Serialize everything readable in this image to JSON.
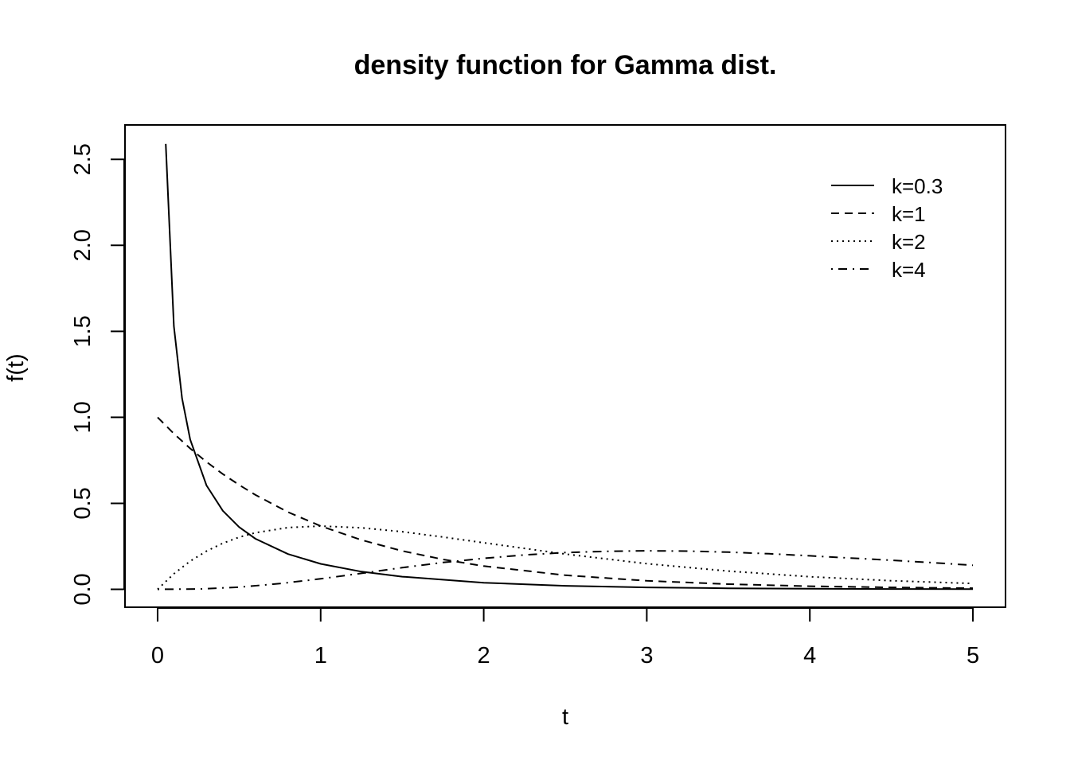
{
  "chart_data": {
    "type": "line",
    "title": "density function for Gamma dist.",
    "xlabel": "t",
    "ylabel": "f(t)",
    "xlim": [
      -0.2,
      5.2
    ],
    "ylim": [
      -0.104,
      2.7
    ],
    "xticks": [
      0,
      1,
      2,
      3,
      4,
      5
    ],
    "xtick_labels": [
      "0",
      "1",
      "2",
      "3",
      "4",
      "5"
    ],
    "yticks": [
      0.0,
      0.5,
      1.0,
      1.5,
      2.0,
      2.5
    ],
    "ytick_labels": [
      "0.0",
      "0.5",
      "1.0",
      "1.5",
      "2.0",
      "2.5"
    ],
    "grid": false,
    "legend_position": "top-right",
    "legend_border": false,
    "series": [
      {
        "name": "k=0.3",
        "line_style": "solid",
        "x": [
          0.05,
          0.1,
          0.15,
          0.2,
          0.3,
          0.4,
          0.5,
          0.6,
          0.8,
          1.0,
          1.25,
          1.5,
          2.0,
          2.5,
          3.0,
          3.5,
          4.0,
          4.5,
          5.0
        ],
        "y": [
          2.59,
          1.53,
          1.11,
          0.871,
          0.604,
          0.457,
          0.362,
          0.294,
          0.205,
          0.148,
          0.103,
          0.0736,
          0.0384,
          0.0206,
          0.0113,
          0.0063,
          0.0035,
          0.002,
          0.0011
        ]
      },
      {
        "name": "k=1",
        "line_style": "dashed",
        "x": [
          0.0,
          0.1,
          0.2,
          0.3,
          0.4,
          0.5,
          0.6,
          0.8,
          1.0,
          1.25,
          1.5,
          1.75,
          2.0,
          2.5,
          3.0,
          3.5,
          4.0,
          4.5,
          5.0
        ],
        "y": [
          1.0,
          0.905,
          0.819,
          0.741,
          0.67,
          0.607,
          0.549,
          0.449,
          0.368,
          0.287,
          0.223,
          0.174,
          0.135,
          0.0821,
          0.0498,
          0.0302,
          0.0183,
          0.0111,
          0.0067
        ]
      },
      {
        "name": "k=2",
        "line_style": "dotted",
        "x": [
          0.0,
          0.1,
          0.2,
          0.3,
          0.4,
          0.5,
          0.6,
          0.8,
          1.0,
          1.25,
          1.5,
          1.75,
          2.0,
          2.5,
          3.0,
          3.5,
          4.0,
          4.5,
          5.0
        ],
        "y": [
          0.0,
          0.0905,
          0.164,
          0.222,
          0.268,
          0.303,
          0.329,
          0.359,
          0.368,
          0.358,
          0.335,
          0.304,
          0.271,
          0.205,
          0.149,
          0.106,
          0.0733,
          0.05,
          0.0337
        ]
      },
      {
        "name": "k=4",
        "line_style": "dotdash",
        "x": [
          0.0,
          0.25,
          0.5,
          0.75,
          1.0,
          1.25,
          1.5,
          1.75,
          2.0,
          2.25,
          2.5,
          2.75,
          3.0,
          3.25,
          3.5,
          3.75,
          4.0,
          4.25,
          4.5,
          4.75,
          5.0
        ],
        "y": [
          0.0,
          0.002,
          0.0126,
          0.0332,
          0.0613,
          0.0932,
          0.126,
          0.156,
          0.18,
          0.2,
          0.214,
          0.221,
          0.224,
          0.222,
          0.216,
          0.207,
          0.195,
          0.182,
          0.169,
          0.155,
          0.14
        ]
      }
    ]
  }
}
